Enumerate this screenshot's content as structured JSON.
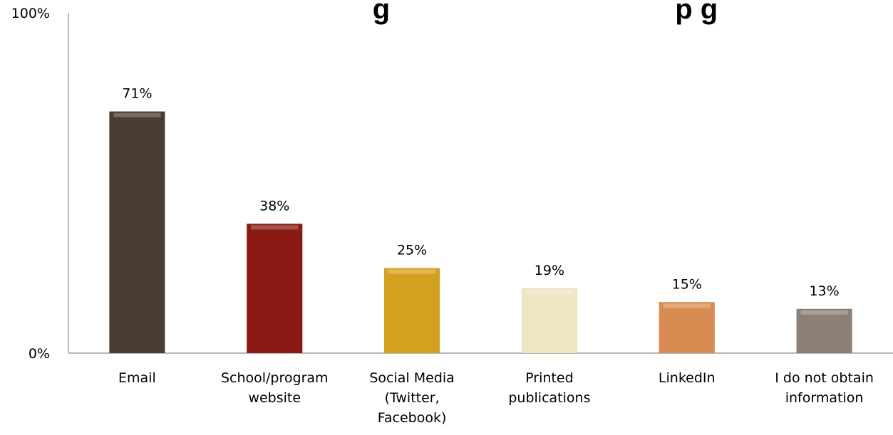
{
  "chart_data": {
    "type": "bar",
    "title": "g                                    p g",
    "categories": [
      [
        "Email"
      ],
      [
        "School/program",
        "website"
      ],
      [
        "Social Media",
        "(Twitter,",
        "Facebook)"
      ],
      [
        "Printed",
        "publications"
      ],
      [
        "LinkedIn"
      ],
      [
        "I do not obtain",
        "information"
      ]
    ],
    "values": [
      71,
      38,
      25,
      19,
      15,
      13
    ],
    "data_labels": [
      "71%",
      "38%",
      "25%",
      "19%",
      "15%",
      "13%"
    ],
    "y_ticks": [
      "0%",
      "100%"
    ],
    "ylim": [
      0,
      100
    ],
    "colors": [
      "#4a3c31",
      "#8b1a14",
      "#d4a020",
      "#eee6c2",
      "#d98c52",
      "#8a8078"
    ],
    "grid": false,
    "legend": "none"
  }
}
